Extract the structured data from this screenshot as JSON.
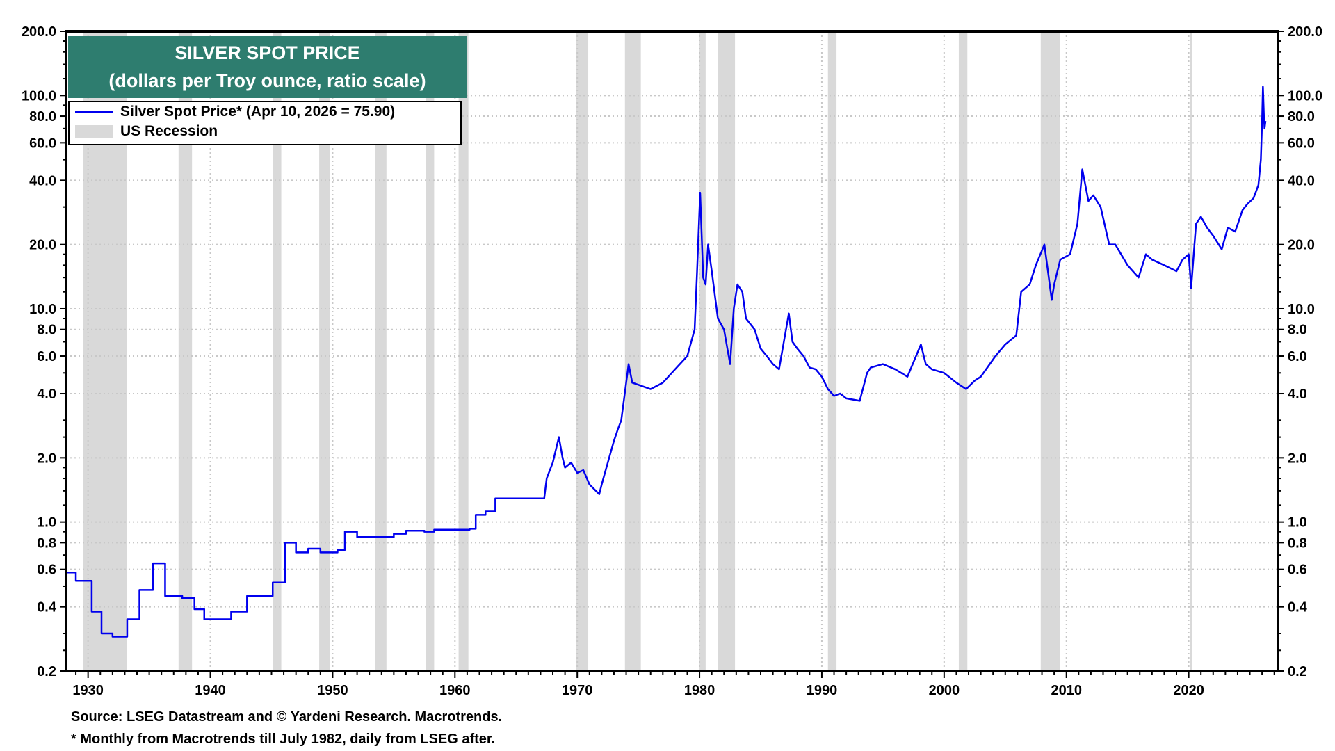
{
  "chart_data": {
    "type": "line",
    "title": "SILVER SPOT PRICE",
    "subtitle": "(dollars per Troy ounce, ratio scale)",
    "yscale": "log",
    "ylim": [
      0.2,
      200
    ],
    "xlim": [
      1928.2,
      2027.3
    ],
    "y_ticks": [
      "200.0",
      "100.0",
      "80.0",
      "60.0",
      "40.0",
      "20.0",
      "10.0",
      "8.0",
      "6.0",
      "4.0",
      "2.0",
      "1.0",
      "0.8",
      "0.6",
      "0.4",
      "0.2"
    ],
    "x_ticks": [
      "1930",
      "1940",
      "1950",
      "1960",
      "1970",
      "1980",
      "1990",
      "2000",
      "2010",
      "2020"
    ],
    "grid": true,
    "legend_position": "top-left",
    "colors": {
      "series": "#0000ee",
      "recession": "#d9d9d9",
      "title_bg": "#2e7d6f"
    },
    "legend": {
      "series": "Silver Spot Price* (Apr 10, 2026 = 75.90)",
      "recession": "US Recession"
    },
    "recessions": [
      [
        1929.6,
        1933.2
      ],
      [
        1937.4,
        1938.5
      ],
      [
        1945.1,
        1945.8
      ],
      [
        1948.9,
        1949.8
      ],
      [
        1953.5,
        1954.4
      ],
      [
        1957.6,
        1958.3
      ],
      [
        1960.3,
        1961.1
      ],
      [
        1969.9,
        1970.9
      ],
      [
        1973.9,
        1975.2
      ],
      [
        1980.0,
        1980.5
      ],
      [
        1981.5,
        1982.9
      ],
      [
        1990.5,
        1991.2
      ],
      [
        2001.2,
        2001.9
      ],
      [
        2007.9,
        2009.5
      ],
      [
        2020.1,
        2020.3
      ]
    ],
    "series": [
      {
        "name": "Silver Spot Price*",
        "points": [
          [
            1928.2,
            0.58
          ],
          [
            1929.0,
            0.53
          ],
          [
            1930.3,
            0.38
          ],
          [
            1931.1,
            0.3
          ],
          [
            1932.0,
            0.29
          ],
          [
            1933.2,
            0.35
          ],
          [
            1934.2,
            0.48
          ],
          [
            1935.3,
            0.64
          ],
          [
            1936.3,
            0.45
          ],
          [
            1937.7,
            0.44
          ],
          [
            1938.7,
            0.39
          ],
          [
            1939.5,
            0.35
          ],
          [
            1941.7,
            0.38
          ],
          [
            1943.0,
            0.45
          ],
          [
            1945.1,
            0.52
          ],
          [
            1946.1,
            0.8
          ],
          [
            1947.0,
            0.72
          ],
          [
            1948.0,
            0.75
          ],
          [
            1949.0,
            0.72
          ],
          [
            1950.4,
            0.74
          ],
          [
            1951.0,
            0.9
          ],
          [
            1952.0,
            0.85
          ],
          [
            1955.0,
            0.88
          ],
          [
            1956.0,
            0.91
          ],
          [
            1957.5,
            0.9
          ],
          [
            1958.3,
            0.92
          ],
          [
            1961.2,
            0.93
          ],
          [
            1961.7,
            1.08
          ],
          [
            1962.5,
            1.12
          ],
          [
            1963.3,
            1.29
          ],
          [
            1967.3,
            1.29
          ],
          [
            1967.5,
            1.6
          ],
          [
            1968.0,
            1.9
          ],
          [
            1968.5,
            2.5
          ],
          [
            1968.8,
            2.0
          ],
          [
            1969.0,
            1.8
          ],
          [
            1969.5,
            1.9
          ],
          [
            1970.0,
            1.7
          ],
          [
            1970.5,
            1.75
          ],
          [
            1971.0,
            1.5
          ],
          [
            1971.8,
            1.35
          ],
          [
            1972.0,
            1.5
          ],
          [
            1972.5,
            1.9
          ],
          [
            1973.0,
            2.4
          ],
          [
            1973.3,
            2.7
          ],
          [
            1973.6,
            3.0
          ],
          [
            1974.2,
            5.5
          ],
          [
            1974.5,
            4.5
          ],
          [
            1975.0,
            4.4
          ],
          [
            1976.0,
            4.2
          ],
          [
            1977.0,
            4.5
          ],
          [
            1978.0,
            5.2
          ],
          [
            1979.0,
            6.0
          ],
          [
            1979.6,
            8.0
          ],
          [
            1979.8,
            15
          ],
          [
            1980.05,
            35
          ],
          [
            1980.3,
            14
          ],
          [
            1980.5,
            13
          ],
          [
            1980.7,
            20
          ],
          [
            1981.0,
            15
          ],
          [
            1981.5,
            9
          ],
          [
            1982.0,
            8
          ],
          [
            1982.5,
            5.5
          ],
          [
            1982.8,
            10
          ],
          [
            1983.1,
            13
          ],
          [
            1983.5,
            12
          ],
          [
            1983.8,
            9
          ],
          [
            1984.5,
            8
          ],
          [
            1985.0,
            6.5
          ],
          [
            1985.5,
            6
          ],
          [
            1986.0,
            5.5
          ],
          [
            1986.5,
            5.2
          ],
          [
            1987.3,
            9.5
          ],
          [
            1987.6,
            7
          ],
          [
            1988.0,
            6.5
          ],
          [
            1988.5,
            6
          ],
          [
            1989.0,
            5.3
          ],
          [
            1989.5,
            5.2
          ],
          [
            1990.0,
            4.8
          ],
          [
            1990.5,
            4.2
          ],
          [
            1991.0,
            3.9
          ],
          [
            1991.5,
            4.0
          ],
          [
            1992.0,
            3.8
          ],
          [
            1993.1,
            3.7
          ],
          [
            1993.7,
            5.0
          ],
          [
            1994.0,
            5.3
          ],
          [
            1995.0,
            5.5
          ],
          [
            1996.0,
            5.2
          ],
          [
            1997.0,
            4.8
          ],
          [
            1998.1,
            6.8
          ],
          [
            1998.5,
            5.5
          ],
          [
            1999.0,
            5.2
          ],
          [
            2000.0,
            5.0
          ],
          [
            2001.0,
            4.5
          ],
          [
            2001.8,
            4.2
          ],
          [
            2002.5,
            4.6
          ],
          [
            2003.0,
            4.8
          ],
          [
            2004.2,
            6.0
          ],
          [
            2005.0,
            6.8
          ],
          [
            2005.9,
            7.5
          ],
          [
            2006.3,
            12
          ],
          [
            2007.0,
            13
          ],
          [
            2007.5,
            16
          ],
          [
            2008.2,
            20
          ],
          [
            2008.8,
            11
          ],
          [
            2009.0,
            13
          ],
          [
            2009.5,
            17
          ],
          [
            2010.3,
            18
          ],
          [
            2010.9,
            25
          ],
          [
            2011.3,
            45
          ],
          [
            2011.8,
            32
          ],
          [
            2012.2,
            34
          ],
          [
            2012.8,
            30
          ],
          [
            2013.5,
            20
          ],
          [
            2014.0,
            20
          ],
          [
            2015.0,
            16
          ],
          [
            2015.9,
            14
          ],
          [
            2016.5,
            18
          ],
          [
            2017.0,
            17
          ],
          [
            2018.0,
            16
          ],
          [
            2019.0,
            15
          ],
          [
            2019.5,
            17
          ],
          [
            2020.0,
            18
          ],
          [
            2020.2,
            12.5
          ],
          [
            2020.6,
            25
          ],
          [
            2021.0,
            27
          ],
          [
            2021.5,
            24
          ],
          [
            2022.0,
            22
          ],
          [
            2022.7,
            19
          ],
          [
            2023.2,
            24
          ],
          [
            2023.8,
            23
          ],
          [
            2024.4,
            29
          ],
          [
            2024.8,
            31
          ],
          [
            2025.3,
            33
          ],
          [
            2025.7,
            38
          ],
          [
            2025.9,
            50
          ],
          [
            2026.0,
            75
          ],
          [
            2026.07,
            110
          ],
          [
            2026.15,
            80
          ],
          [
            2026.2,
            70
          ],
          [
            2026.28,
            75.9
          ]
        ]
      }
    ]
  },
  "footer": {
    "source": "Source: LSEG Datastream and © Yardeni Research. Macrotrends.",
    "note": "* Monthly from Macrotrends till July 1982, daily from LSEG after."
  }
}
